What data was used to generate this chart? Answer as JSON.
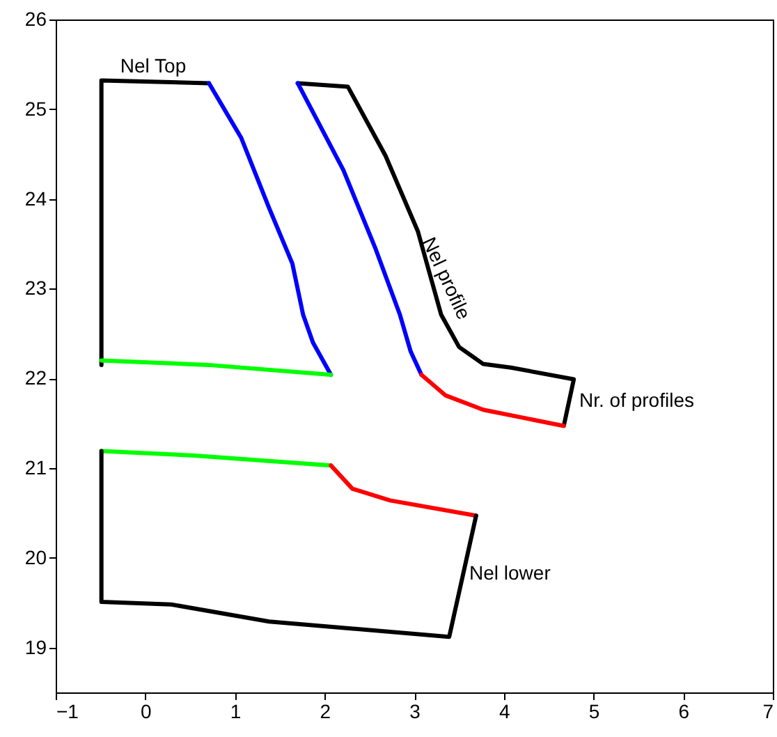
{
  "chart_data": {
    "type": "line",
    "xlim": [
      -1,
      7
    ],
    "ylim": [
      18.5,
      26
    ],
    "xticks": [
      -1,
      0,
      1,
      2,
      3,
      4,
      5,
      6,
      7
    ],
    "yticks": [
      19,
      20,
      21,
      22,
      23,
      24,
      25,
      26
    ],
    "series": [
      {
        "color": "#000000",
        "x": [
          -0.49,
          -0.49,
          0.71
        ],
        "values": [
          22.15,
          25.32,
          25.29
        ]
      },
      {
        "color": "#0000ff",
        "x": [
          0.71,
          1.07,
          1.38,
          1.64,
          1.76,
          1.87,
          2.07
        ],
        "values": [
          25.29,
          24.68,
          23.9,
          23.28,
          22.71,
          22.4,
          22.04
        ]
      },
      {
        "color": "#00ff00",
        "x": [
          -0.49,
          0.7,
          2.07
        ],
        "values": [
          22.2,
          22.15,
          22.04
        ]
      },
      {
        "color": "#000000",
        "x": [
          1.7,
          2.26,
          2.68,
          3.04,
          3.3,
          3.5,
          3.77,
          4.08,
          4.78,
          4.67
        ],
        "values": [
          25.29,
          25.25,
          24.48,
          23.64,
          22.71,
          22.35,
          22.16,
          22.12,
          21.99,
          21.48
        ]
      },
      {
        "color": "#0000ff",
        "x": [
          1.7,
          2.21,
          2.57,
          2.84,
          2.96,
          3.08
        ],
        "values": [
          25.29,
          24.32,
          23.44,
          22.71,
          22.3,
          22.04
        ]
      },
      {
        "color": "#ff0000",
        "x": [
          3.08,
          3.35,
          3.77,
          4.67
        ],
        "values": [
          22.04,
          21.81,
          21.65,
          21.47
        ]
      },
      {
        "color": "#00ff00",
        "x": [
          -0.49,
          0.55,
          2.07
        ],
        "values": [
          21.19,
          21.14,
          21.03
        ]
      },
      {
        "color": "#ff0000",
        "x": [
          2.07,
          2.31,
          2.73,
          3.69
        ],
        "values": [
          21.03,
          20.77,
          20.64,
          20.47
        ]
      },
      {
        "color": "#000000",
        "x": [
          3.69,
          3.39,
          1.38,
          0.29,
          -0.49,
          -0.49
        ],
        "values": [
          20.47,
          19.12,
          19.29,
          19.48,
          19.51,
          21.19
        ]
      }
    ],
    "annotations": [
      "Nel Top",
      "Nel profile",
      "Nr. of profiles",
      "Nel lower"
    ]
  }
}
